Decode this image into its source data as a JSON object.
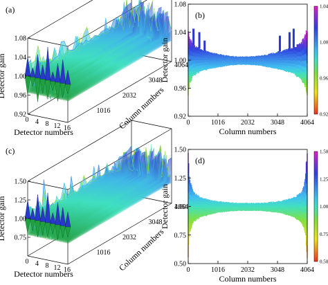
{
  "chart_data": [
    {
      "panel": "(a)",
      "type": "surface3d",
      "zlabel": "Detector gain",
      "xlabel": "Detector numbers",
      "ylabel": "Column numbers",
      "zticks": [
        "0.92",
        "0.96",
        "1.00",
        "1.04",
        "1.08"
      ],
      "zlim": [
        0.92,
        1.08
      ],
      "xticks": [
        "0",
        "4",
        "8",
        "12",
        "16"
      ],
      "yticks": [
        "1016",
        "2032",
        "3048",
        "4064"
      ],
      "detectors": [
        0,
        16
      ],
      "columns": [
        0,
        4064
      ],
      "profile": {
        "detectors": [
          0,
          2,
          4,
          6,
          8,
          10,
          12,
          14,
          16
        ],
        "peak_gain": [
          1.04,
          1.02,
          1.05,
          1.03,
          1.07,
          1.02,
          1.04,
          1.05,
          1.03
        ],
        "trough_gain": [
          0.96,
          0.98,
          0.95,
          0.97,
          0.96,
          0.98,
          0.96,
          0.97,
          0.98
        ]
      }
    },
    {
      "panel": "(b)",
      "type": "band",
      "ylabel": "Detector gain",
      "xlabel": "Column numbers",
      "xticks": [
        "0",
        "1016",
        "2032",
        "3048",
        "4064"
      ],
      "yticks": [
        "0.92",
        "0.96",
        "1.00",
        "1.04",
        "1.08"
      ],
      "xlim": [
        0,
        4064
      ],
      "ylim": [
        0.92,
        1.08
      ],
      "colorbar": {
        "ticks": [
          "1.04",
          "1.00",
          "0.96",
          "0.92"
        ],
        "range": [
          0.92,
          1.04
        ]
      },
      "x": [
        0,
        60,
        150,
        300,
        500,
        800,
        1100,
        1400,
        1700,
        2032,
        2400,
        2700,
        3000,
        3300,
        3600,
        3850,
        3980,
        4064
      ],
      "upper": [
        1.045,
        1.03,
        1.022,
        1.018,
        1.014,
        1.011,
        1.008,
        1.006,
        1.005,
        1.005,
        1.006,
        1.008,
        1.011,
        1.014,
        1.018,
        1.024,
        1.032,
        1.045
      ],
      "lower": [
        0.955,
        0.97,
        0.978,
        0.983,
        0.986,
        0.989,
        0.991,
        0.993,
        0.994,
        0.994,
        0.993,
        0.991,
        0.989,
        0.986,
        0.982,
        0.975,
        0.968,
        0.955
      ],
      "spikes": [
        {
          "x": 180,
          "top": 1.045
        },
        {
          "x": 380,
          "top": 1.04
        },
        {
          "x": 560,
          "top": 1.028
        },
        {
          "x": 3130,
          "top": 1.035
        },
        {
          "x": 3460,
          "top": 1.04
        },
        {
          "x": 3600,
          "top": 1.045
        }
      ]
    },
    {
      "panel": "(c)",
      "type": "surface3d",
      "zlabel": "Detector gain",
      "xlabel": "Detector numbers",
      "ylabel": "Column numbers",
      "zticks": [
        "0.75",
        "1.00",
        "1.25",
        "1.50"
      ],
      "zlim": [
        0.5,
        1.5
      ],
      "xticks": [
        "0",
        "4",
        "8",
        "12",
        "16"
      ],
      "yticks": [
        "1016",
        "2032",
        "3048",
        "4064"
      ],
      "detectors": [
        0,
        16
      ],
      "columns": [
        0,
        4064
      ],
      "profile": {
        "detectors": [
          0,
          2,
          4,
          6,
          8,
          10,
          12,
          14,
          16
        ],
        "peak_gain": [
          1.25,
          1.15,
          1.35,
          1.2,
          1.4,
          1.15,
          1.3,
          1.25,
          1.2
        ],
        "trough_gain": [
          0.8,
          0.85,
          0.78,
          0.82,
          0.8,
          0.86,
          0.8,
          0.84,
          0.86
        ]
      }
    },
    {
      "panel": "(d)",
      "type": "band",
      "ylabel": "Detector gain",
      "xlabel": "Column numbers",
      "xticks": [
        "0",
        "1016",
        "2032",
        "3048",
        "4064"
      ],
      "yticks": [
        "0.50",
        "0.75",
        "1.00",
        "1.25",
        "1.50"
      ],
      "xlim": [
        0,
        4064
      ],
      "ylim": [
        0.5,
        1.5
      ],
      "colorbar": {
        "ticks": [
          "1.50",
          "1.25",
          "1.00",
          "0.75",
          "0.50"
        ],
        "range": [
          0.5,
          1.5
        ]
      },
      "x": [
        0,
        40,
        100,
        200,
        400,
        700,
        1000,
        1400,
        1700,
        2032,
        2400,
        2700,
        3100,
        3400,
        3700,
        3900,
        3990,
        4064
      ],
      "upper": [
        1.5,
        1.26,
        1.18,
        1.12,
        1.08,
        1.06,
        1.045,
        1.035,
        1.03,
        1.03,
        1.03,
        1.035,
        1.045,
        1.06,
        1.09,
        1.13,
        1.22,
        1.5
      ],
      "lower": [
        0.6,
        0.77,
        0.83,
        0.88,
        0.91,
        0.93,
        0.95,
        0.96,
        0.965,
        0.965,
        0.965,
        0.96,
        0.95,
        0.93,
        0.9,
        0.86,
        0.8,
        0.6
      ],
      "spikes": []
    }
  ]
}
